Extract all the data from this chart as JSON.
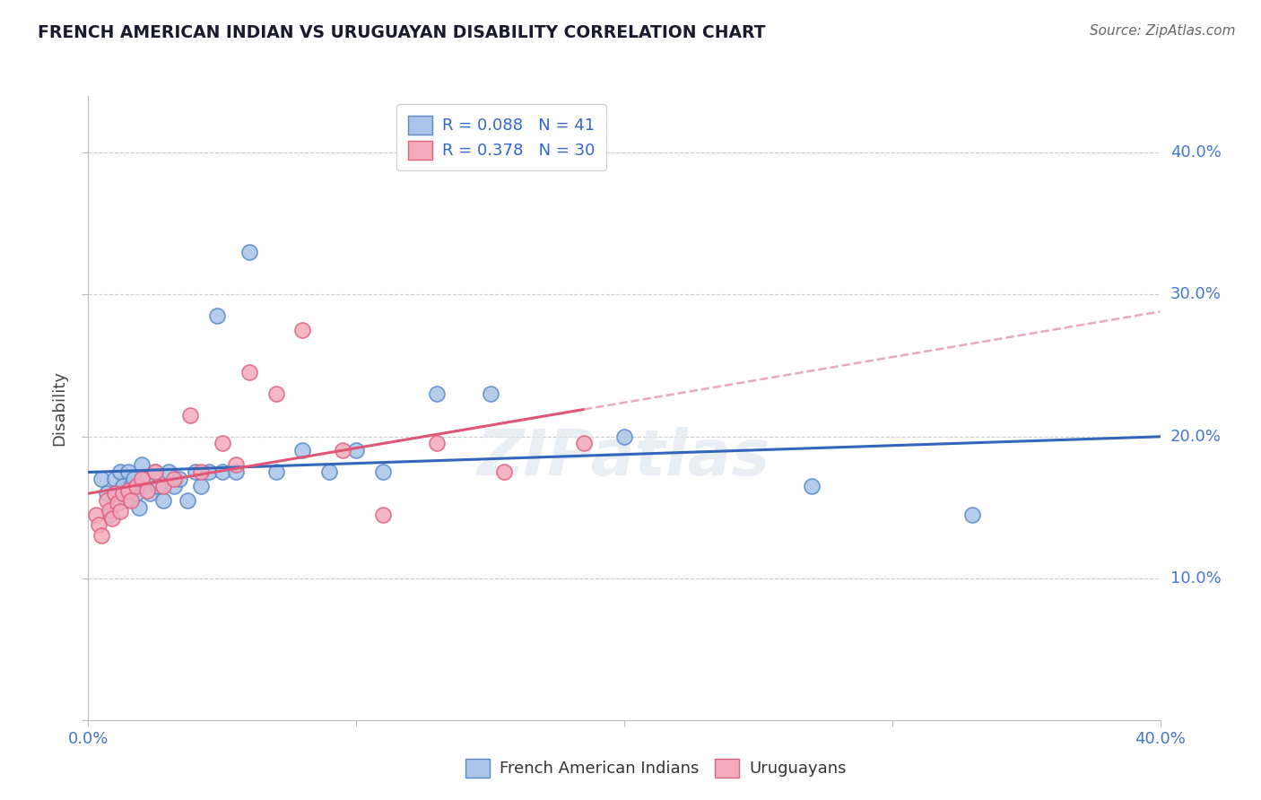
{
  "title": "FRENCH AMERICAN INDIAN VS URUGUAYAN DISABILITY CORRELATION CHART",
  "source": "Source: ZipAtlas.com",
  "ylabel": "Disability",
  "xlim": [
    0.0,
    0.4
  ],
  "ylim": [
    0.0,
    0.44
  ],
  "blue_R": 0.088,
  "blue_N": 41,
  "pink_R": 0.378,
  "pink_N": 30,
  "blue_fill": "#aac4e8",
  "blue_edge": "#5588cc",
  "pink_fill": "#f4aabc",
  "pink_edge": "#e06080",
  "blue_line": "#3366bb",
  "pink_line": "#e05575",
  "pink_dash": "#e8aabb",
  "blue_points_x": [
    0.005,
    0.007,
    0.008,
    0.01,
    0.01,
    0.012,
    0.013,
    0.014,
    0.015,
    0.016,
    0.017,
    0.018,
    0.019,
    0.02,
    0.021,
    0.022,
    0.023,
    0.025,
    0.026,
    0.028,
    0.03,
    0.032,
    0.034,
    0.037,
    0.04,
    0.042,
    0.045,
    0.048,
    0.05,
    0.055,
    0.06,
    0.07,
    0.08,
    0.09,
    0.1,
    0.11,
    0.13,
    0.15,
    0.2,
    0.27,
    0.33
  ],
  "blue_points_y": [
    0.17,
    0.16,
    0.145,
    0.17,
    0.16,
    0.175,
    0.165,
    0.155,
    0.175,
    0.165,
    0.17,
    0.16,
    0.15,
    0.18,
    0.165,
    0.17,
    0.16,
    0.175,
    0.165,
    0.155,
    0.175,
    0.165,
    0.17,
    0.155,
    0.175,
    0.165,
    0.175,
    0.285,
    0.175,
    0.175,
    0.33,
    0.175,
    0.19,
    0.175,
    0.19,
    0.175,
    0.23,
    0.23,
    0.2,
    0.165,
    0.145
  ],
  "pink_points_x": [
    0.003,
    0.004,
    0.005,
    0.007,
    0.008,
    0.009,
    0.01,
    0.011,
    0.012,
    0.013,
    0.015,
    0.016,
    0.018,
    0.02,
    0.022,
    0.025,
    0.028,
    0.032,
    0.038,
    0.042,
    0.05,
    0.055,
    0.06,
    0.07,
    0.08,
    0.095,
    0.11,
    0.13,
    0.155,
    0.185
  ],
  "pink_points_y": [
    0.145,
    0.138,
    0.13,
    0.155,
    0.148,
    0.142,
    0.16,
    0.153,
    0.147,
    0.16,
    0.162,
    0.155,
    0.165,
    0.17,
    0.162,
    0.175,
    0.165,
    0.17,
    0.215,
    0.175,
    0.195,
    0.18,
    0.245,
    0.23,
    0.275,
    0.19,
    0.145,
    0.195,
    0.175,
    0.195
  ],
  "watermark_text": "ZIPatlas",
  "legend1_labels": [
    "French American Indians",
    "Uruguayans"
  ],
  "grid_color": "#cccccc"
}
